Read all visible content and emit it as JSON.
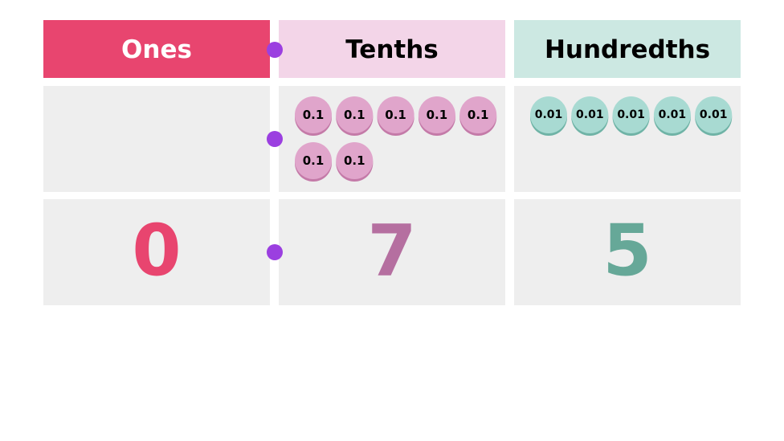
{
  "columns": [
    {
      "header": "Ones",
      "digit": "0"
    },
    {
      "header": "Tenths",
      "counters": [
        "0.1",
        "0.1",
        "0.1",
        "0.1",
        "0.1",
        "0.1",
        "0.1"
      ],
      "digit": "7"
    },
    {
      "header": "Hundredths",
      "counters": [
        "0.01",
        "0.01",
        "0.01",
        "0.01",
        "0.01"
      ],
      "digit": "5"
    }
  ]
}
